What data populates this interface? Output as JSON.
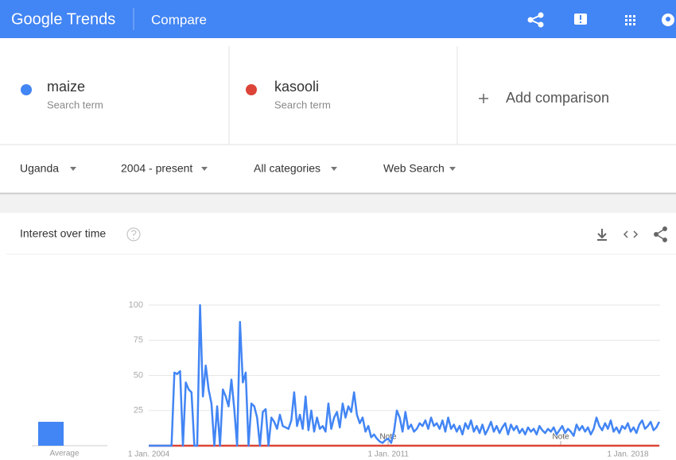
{
  "header": {
    "logo": "Google Trends",
    "page": "Compare"
  },
  "terms": [
    {
      "subtitle": "Search term"
    },
    {
      "subtitle": "Search term"
    }
  ],
  "add_comparison": "Add comparison",
  "filters": [
    "Uganda",
    "2004 - present",
    "All categories",
    "Web Search"
  ],
  "card_title": "Interest over time",
  "chart_data": {
    "type": "line",
    "average_label": "Average",
    "annotations": [
      "Note",
      "Note"
    ],
    "ylim": [
      0,
      100
    ],
    "yticks": [
      25,
      50,
      75,
      100
    ],
    "grid": true,
    "categories": [
      "1 Jan. 2004",
      null,
      null,
      null,
      null,
      null,
      null,
      null,
      null,
      null,
      null,
      null,
      null,
      null,
      null,
      null,
      null,
      null,
      null,
      null,
      null,
      null,
      null,
      null,
      null,
      null,
      null,
      null,
      null,
      null,
      null,
      null,
      null,
      null,
      null,
      null,
      null,
      null,
      null,
      null,
      null,
      null,
      null,
      null,
      null,
      null,
      null,
      null,
      null,
      null,
      null,
      null,
      null,
      null,
      null,
      null,
      null,
      null,
      null,
      null,
      null,
      null,
      null,
      null,
      null,
      null,
      null,
      null,
      null,
      null,
      null,
      null,
      null,
      null,
      null,
      null,
      null,
      null,
      null,
      null,
      null,
      null,
      null,
      null,
      "1 Jan. 2011",
      null,
      null,
      null,
      null,
      null,
      null,
      null,
      null,
      null,
      null,
      null,
      null,
      null,
      null,
      null,
      null,
      null,
      null,
      null,
      null,
      null,
      null,
      null,
      null,
      null,
      null,
      null,
      null,
      null,
      null,
      null,
      null,
      null,
      null,
      null,
      null,
      null,
      null,
      null,
      null,
      null,
      null,
      null,
      null,
      null,
      null,
      null,
      null,
      null,
      null,
      null,
      null,
      null,
      null,
      null,
      null,
      null,
      null,
      null,
      null,
      null,
      null,
      null,
      null,
      null,
      null,
      null,
      null,
      null,
      null,
      null,
      null,
      null,
      null,
      null,
      null,
      null,
      null,
      null,
      null,
      null,
      null,
      null,
      "1 Jan. 2018",
      null,
      null,
      null,
      null,
      null,
      null,
      null,
      null,
      null,
      null,
      null
    ],
    "series": [
      {
        "name": "maize",
        "color": "#4285f4",
        "average": 17,
        "values": [
          0,
          0,
          0,
          0,
          0,
          0,
          0,
          0,
          0,
          52,
          51,
          53,
          0,
          45,
          40,
          38,
          0,
          0,
          100,
          35,
          57,
          40,
          30,
          0,
          28,
          0,
          40,
          35,
          28,
          47,
          26,
          0,
          88,
          45,
          52,
          0,
          30,
          28,
          20,
          0,
          24,
          26,
          0,
          20,
          17,
          12,
          22,
          14,
          13,
          12,
          18,
          38,
          14,
          22,
          12,
          35,
          11,
          25,
          10,
          20,
          12,
          14,
          10,
          30,
          12,
          20,
          24,
          13,
          30,
          20,
          28,
          24,
          38,
          22,
          16,
          20,
          10,
          14,
          6,
          8,
          5,
          3,
          2,
          4,
          5,
          2,
          10,
          25,
          20,
          10,
          24,
          12,
          15,
          10,
          12,
          16,
          14,
          18,
          12,
          20,
          14,
          16,
          12,
          18,
          10,
          20,
          12,
          15,
          10,
          14,
          8,
          16,
          12,
          18,
          10,
          14,
          9,
          15,
          8,
          12,
          17,
          10,
          14,
          9,
          13,
          16,
          8,
          15,
          11,
          14,
          9,
          12,
          8,
          13,
          10,
          12,
          8,
          14,
          11,
          9,
          12,
          10,
          13,
          8,
          11,
          14,
          9,
          12,
          10,
          7,
          15,
          11,
          14,
          10,
          13,
          8,
          12,
          20,
          14,
          11,
          16,
          12,
          18,
          10,
          13,
          9,
          14,
          12,
          16,
          10,
          13,
          9,
          15,
          18,
          12,
          14,
          17,
          11,
          13,
          17
        ]
      },
      {
        "name": "kasooli",
        "color": "#db4437",
        "average": 0,
        "values": [
          0,
          0,
          0,
          0,
          0,
          0,
          0,
          0,
          0,
          0,
          0,
          0,
          0,
          0,
          0,
          0,
          0,
          0,
          0,
          0,
          0,
          0,
          0,
          0,
          0,
          0,
          0,
          0,
          0,
          0,
          0,
          0,
          0,
          0,
          0,
          0,
          0,
          0,
          0,
          0,
          0,
          0,
          0,
          0,
          0,
          0,
          0,
          0,
          0,
          0,
          0,
          0,
          0,
          0,
          0,
          0,
          0,
          0,
          0,
          0,
          0,
          0,
          0,
          0,
          0,
          0,
          0,
          0,
          0,
          0,
          0,
          0,
          0,
          0,
          0,
          0,
          0,
          0,
          0,
          0,
          0,
          0,
          0,
          0,
          0,
          0,
          0,
          0,
          0,
          0,
          0,
          0,
          0,
          0,
          0,
          0,
          0,
          0,
          0,
          0,
          0,
          0,
          0,
          0,
          0,
          0,
          0,
          0,
          0,
          0,
          0,
          0,
          0,
          0,
          0,
          0,
          0,
          0,
          0,
          0,
          0,
          0,
          0,
          0,
          0,
          0,
          0,
          0,
          0,
          0,
          0,
          0,
          0,
          0,
          0,
          0,
          0,
          0,
          0,
          0,
          0,
          0,
          0,
          0,
          0,
          0,
          0,
          0,
          0,
          0,
          0,
          0,
          0,
          0,
          0,
          0,
          0,
          0,
          0,
          0,
          0,
          0,
          0,
          0,
          0,
          0,
          0,
          0,
          0,
          0,
          0,
          0,
          0,
          0,
          0,
          0,
          0,
          0,
          0,
          0
        ]
      }
    ]
  }
}
